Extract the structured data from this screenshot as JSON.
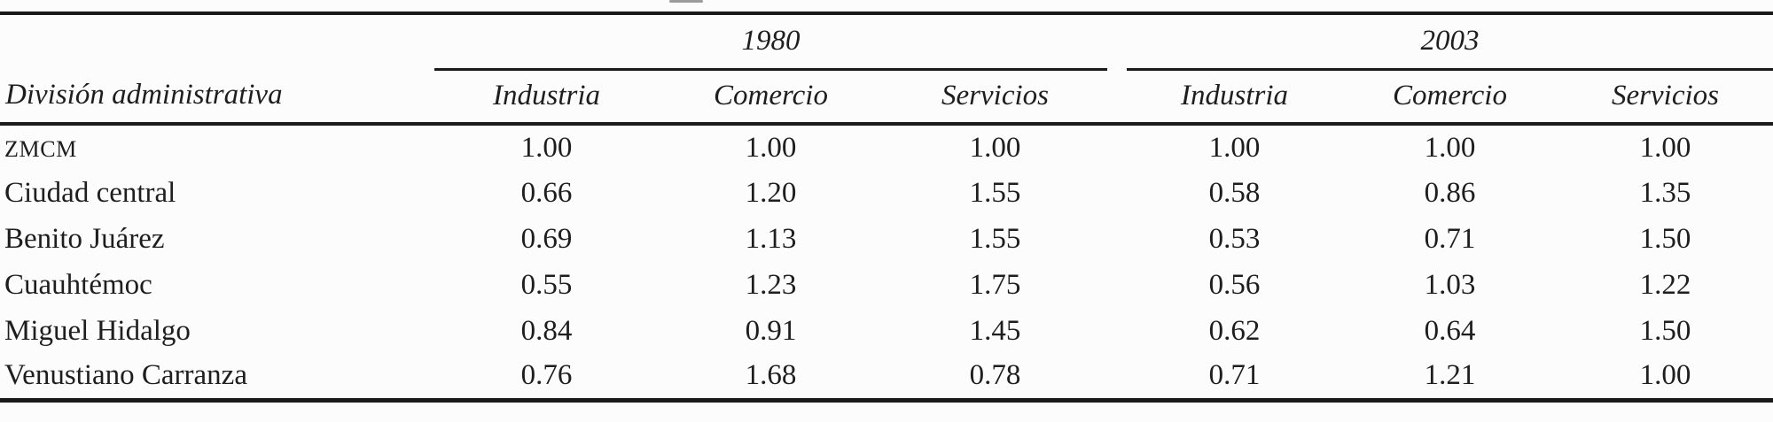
{
  "table": {
    "row_header_label": "División administrativa",
    "groups": [
      {
        "label": "1980",
        "columns": [
          "Industria",
          "Comercio",
          "Servicios"
        ]
      },
      {
        "label": "2003",
        "columns": [
          "Industria",
          "Comercio",
          "Servicios"
        ]
      }
    ],
    "rows": [
      {
        "label": "ZMCM",
        "y1980": [
          "1.00",
          "1.00",
          "1.00"
        ],
        "y2003": [
          "1.00",
          "1.00",
          "1.00"
        ]
      },
      {
        "label": "Ciudad central",
        "y1980": [
          "0.66",
          "1.20",
          "1.55"
        ],
        "y2003": [
          "0.58",
          "0.86",
          "1.35"
        ]
      },
      {
        "label": "Benito Juárez",
        "y1980": [
          "0.69",
          "1.13",
          "1.55"
        ],
        "y2003": [
          "0.53",
          "0.71",
          "1.50"
        ]
      },
      {
        "label": "Cuauhtémoc",
        "y1980": [
          "0.55",
          "1.23",
          "1.75"
        ],
        "y2003": [
          "0.56",
          "1.03",
          "1.22"
        ]
      },
      {
        "label": "Miguel Hidalgo",
        "y1980": [
          "0.84",
          "0.91",
          "1.45"
        ],
        "y2003": [
          "0.62",
          "0.64",
          "1.50"
        ]
      },
      {
        "label": "Venustiano Carranza",
        "y1980": [
          "0.76",
          "1.68",
          "0.78"
        ],
        "y2003": [
          "0.71",
          "1.21",
          "1.00"
        ]
      }
    ]
  },
  "chart_data": {
    "type": "table",
    "title": "",
    "row_header": "División administrativa",
    "column_groups": [
      "1980",
      "2003"
    ],
    "columns": [
      "1980 Industria",
      "1980 Comercio",
      "1980 Servicios",
      "2003 Industria",
      "2003 Comercio",
      "2003 Servicios"
    ],
    "rows": [
      "ZMCM",
      "Ciudad central",
      "Benito Juárez",
      "Cuauhtémoc",
      "Miguel Hidalgo",
      "Venustiano Carranza"
    ],
    "values": [
      [
        1.0,
        1.0,
        1.0,
        1.0,
        1.0,
        1.0
      ],
      [
        0.66,
        1.2,
        1.55,
        0.58,
        0.86,
        1.35
      ],
      [
        0.69,
        1.13,
        1.55,
        0.53,
        0.71,
        1.5
      ],
      [
        0.55,
        1.23,
        1.75,
        0.56,
        1.03,
        1.22
      ],
      [
        0.84,
        0.91,
        1.45,
        0.62,
        0.64,
        1.5
      ],
      [
        0.76,
        1.68,
        0.78,
        0.71,
        1.21,
        1.0
      ]
    ]
  }
}
